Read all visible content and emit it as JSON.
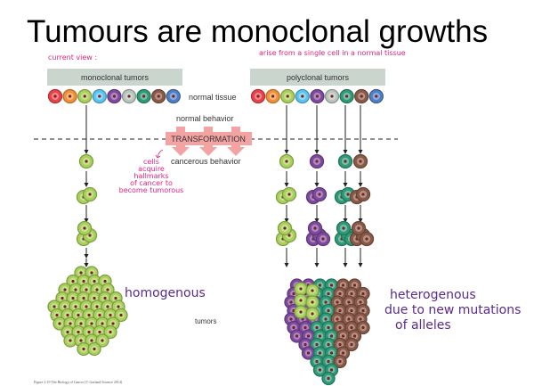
{
  "slide": {
    "title": "Tumours are monoclonal growths",
    "caption": "Figure 2.19 The Biology of Cancer (© Garland Science 2014)"
  },
  "diagram": {
    "left_header": "monoclonal tumors",
    "right_header": "polyclonal tumors",
    "normal_tissue": "normal tissue",
    "normal_behavior": "normal behavior",
    "transformation": "TRANSFORMATION",
    "cancerous_behavior": "cancerous behavior",
    "tumors": "tumors",
    "header_color": "#c9d5cd",
    "transformation_color": "#f4a3a3",
    "cell_colors": [
      "#e8434a",
      "#f0913a",
      "#a9d15a",
      "#5bc3ef",
      "#7e4a9e",
      "#b9c4bd",
      "#2f9a78",
      "#8a5a48",
      "#4f7fc6"
    ],
    "polyclonal_lineages": [
      "#a9d15a",
      "#7e4a9e",
      "#2f9a78",
      "#8a5a48"
    ]
  },
  "annotations": {
    "current_view": "current view :",
    "arise": "arise from a single cell in a normal tissue",
    "cells_acquire": [
      "cells",
      "acquire",
      "hallmarks",
      "of cancer to",
      "become tumorous"
    ],
    "homogenous": "homogenous",
    "heterogenous": [
      "heterogenous",
      "due to new mutations",
      "of alleles"
    ]
  }
}
